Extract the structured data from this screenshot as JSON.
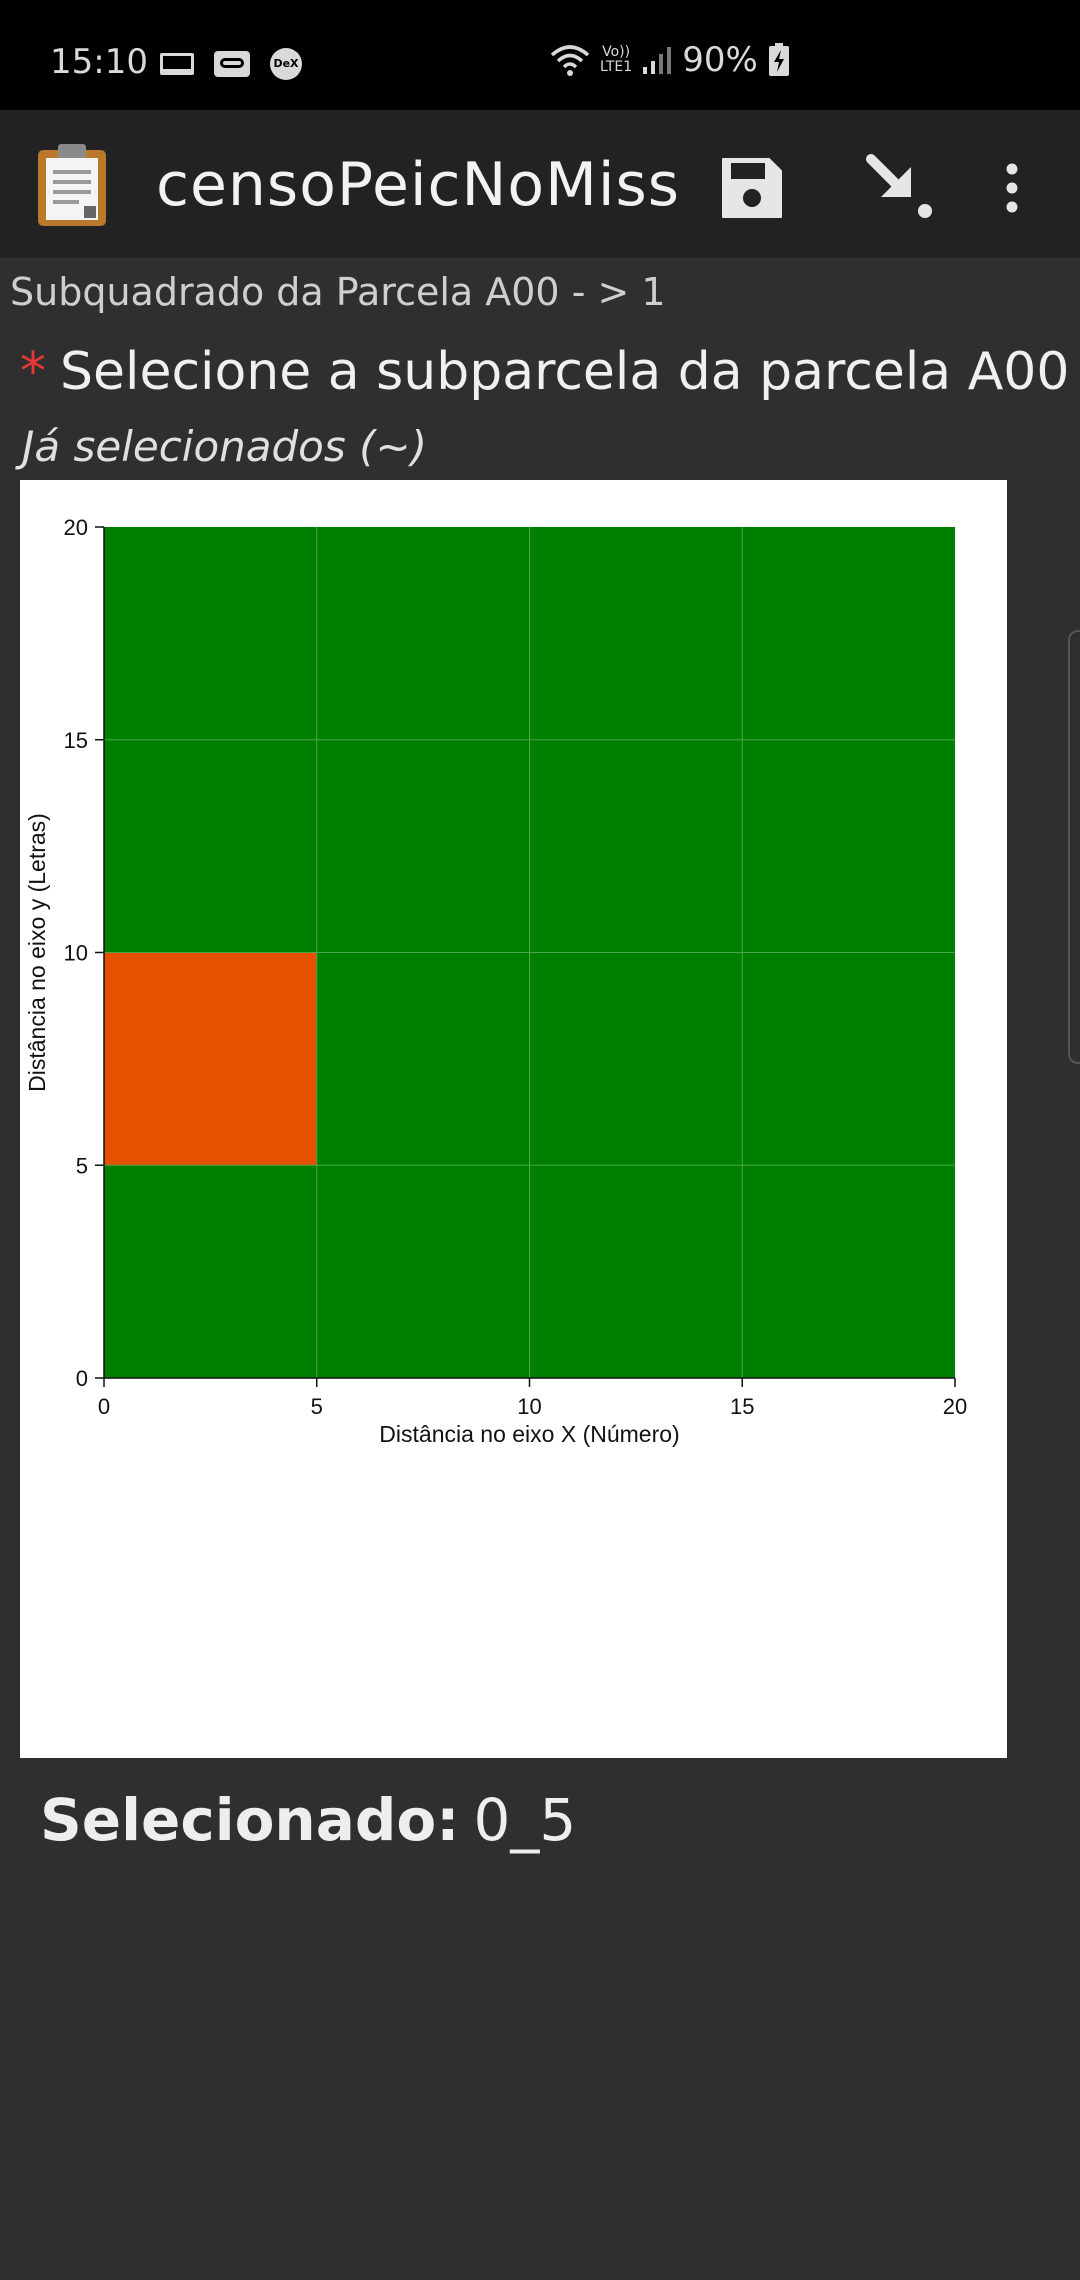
{
  "status_bar": {
    "time": "15:10",
    "volte_top": "Vo))",
    "volte_bottom": "LTE1",
    "battery": "90%",
    "dex": "DeX"
  },
  "app_bar": {
    "title": "censoPeicNoMiss",
    "actions": [
      "save-icon",
      "go-next-icon",
      "more-vert-icon"
    ]
  },
  "form": {
    "breadcrumb": "Subquadrado da Parcela A00 -  > 1",
    "required_marker": "*",
    "question": "Selecione a subparcela da parcela A00",
    "hint": "Já selecionados (~)",
    "selected_label": "Selecionado:",
    "selected_value": "0_5"
  },
  "colors": {
    "plot_fill": "#008000",
    "selected_fill": "#E65100",
    "gridline": "#4ca64c"
  },
  "chart_data": {
    "type": "heatmap",
    "xlabel": "Distância no eixo X (Número)",
    "ylabel": "Distância no eixo y (Letras)",
    "xlim": [
      0,
      20
    ],
    "ylim": [
      0,
      20
    ],
    "xticks": [
      "0",
      "5",
      "10",
      "15",
      "20"
    ],
    "yticks": [
      "0",
      "5",
      "10",
      "15",
      "20"
    ],
    "grid": true,
    "cells": [
      {
        "x0": 0,
        "x1": 5,
        "y0": 5,
        "y1": 10,
        "state": "selected"
      }
    ]
  }
}
